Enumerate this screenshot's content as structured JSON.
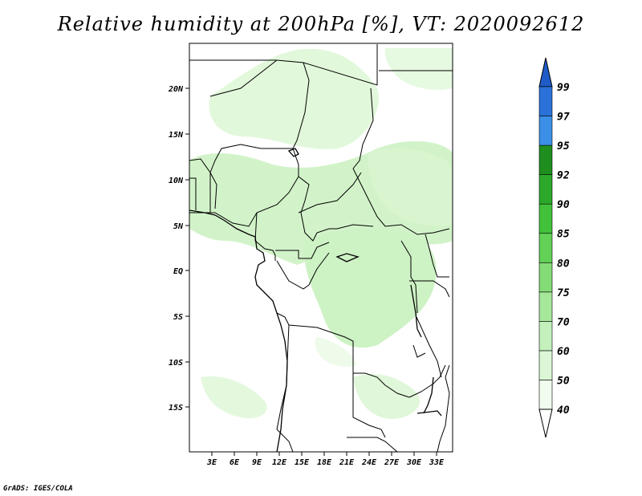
{
  "title": "Relative humidity at 200hPa [%], VT: 2020092612",
  "credit": "GrADS: IGES/COLA",
  "map": {
    "lat_labels": [
      "20N",
      "15N",
      "10N",
      "5N",
      "EQ",
      "5S",
      "10S",
      "15S"
    ],
    "lon_labels": [
      "3E",
      "6E",
      "9E",
      "12E",
      "15E",
      "18E",
      "21E",
      "24E",
      "27E",
      "30E",
      "33E"
    ],
    "land_color": "#ffffff",
    "border_color": "#000000"
  },
  "colorbar": {
    "levels": [
      "40",
      "50",
      "60",
      "70",
      "75",
      "80",
      "85",
      "90",
      "92",
      "95",
      "97",
      "99"
    ],
    "colors": [
      "#f0fced",
      "#dcf7d6",
      "#c4f0bc",
      "#a6e89b",
      "#84dc77",
      "#62d156",
      "#41c23a",
      "#2ca82a",
      "#1e8f1e",
      "#3b8fe6",
      "#2a72d9",
      "#1f5cc7"
    ],
    "below_color": "#ffffff",
    "above_color": "#1f5cc7"
  }
}
